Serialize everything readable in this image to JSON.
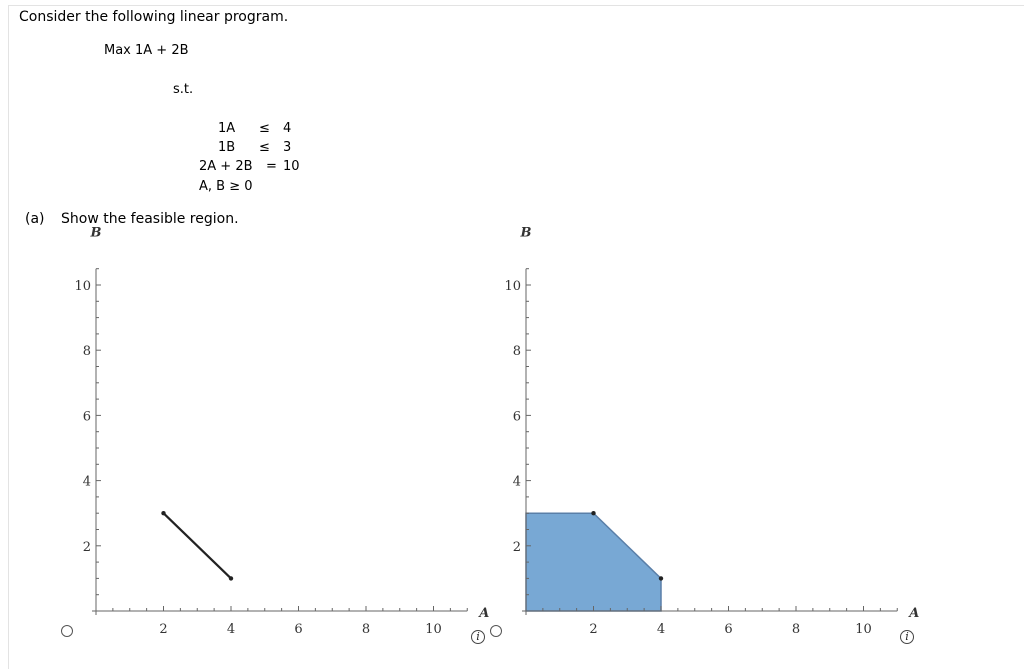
{
  "question": {
    "intro": "Consider the following linear program.",
    "objective": "Max 1A + 2B",
    "st": "s.t.",
    "constraints": [
      {
        "lhs": "1A",
        "op": "≤",
        "rhs": "4"
      },
      {
        "lhs": "1B",
        "op": "≤",
        "rhs": "3"
      },
      {
        "lhs": "2A + 2B",
        "op": "=",
        "rhs": "10"
      }
    ],
    "nonneg": "A, B ≥ 0",
    "part_a_label": "(a)",
    "part_a_text": "Show the feasible region."
  },
  "info_icon_glyph": "i",
  "chart_data": [
    {
      "type": "line",
      "option": "choice-1",
      "xlabel": "A",
      "ylabel": "B",
      "xlim": [
        0,
        11
      ],
      "ylim": [
        0,
        10.5
      ],
      "xticks": [
        2,
        4,
        6,
        8,
        10
      ],
      "yticks": [
        2,
        4,
        6,
        8,
        10
      ],
      "segment": [
        [
          2,
          3
        ],
        [
          4,
          1
        ]
      ],
      "line_color": "#222222"
    },
    {
      "type": "area",
      "option": "choice-2",
      "xlabel": "A",
      "ylabel": "B",
      "xlim": [
        0,
        11
      ],
      "ylim": [
        0,
        10.5
      ],
      "xticks": [
        2,
        4,
        6,
        8,
        10
      ],
      "yticks": [
        2,
        4,
        6,
        8,
        10
      ],
      "polygon": [
        [
          0,
          0
        ],
        [
          0,
          3
        ],
        [
          2,
          3
        ],
        [
          4,
          1
        ],
        [
          4,
          0
        ]
      ],
      "vertices": [
        [
          2,
          3
        ],
        [
          4,
          1
        ]
      ],
      "fill_color": "#78a8d4",
      "edge_color": "#5a7fa8"
    }
  ]
}
